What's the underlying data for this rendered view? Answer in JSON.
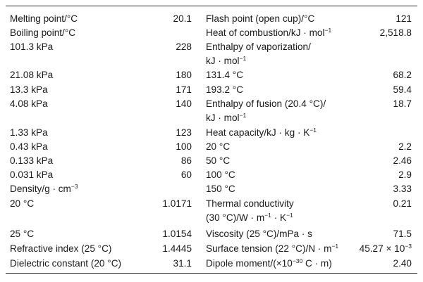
{
  "left": [
    {
      "label": "Melting point/°C",
      "value": "20.1"
    },
    {
      "label": "Boiling point/°C",
      "value": ""
    },
    {
      "label": "101.3 kPa",
      "value": "228"
    },
    {
      "label": "21.08 kPa",
      "value": "180"
    },
    {
      "label": "13.3 kPa",
      "value": "171"
    },
    {
      "label": "4.08 kPa",
      "value": "140"
    },
    {
      "label": "1.33 kPa",
      "value": "123"
    },
    {
      "label": "0.43 kPa",
      "value": "100"
    },
    {
      "label": "0.133 kPa",
      "value": "86"
    },
    {
      "label": "0.031 kPa",
      "value": "60"
    },
    {
      "label": "Density/g · cm",
      "sup": "−3",
      "value": ""
    },
    {
      "label": "20 °C",
      "value": "1.0171"
    },
    {
      "label": "25 °C",
      "value": "1.0154"
    },
    {
      "label": "Refractive index (25 °C)",
      "value": "1.4445"
    },
    {
      "label": "Dielectric constant (20 °C)",
      "value": "31.1"
    }
  ],
  "right": {
    "flash_label": "Flash point (open cup)/°C",
    "flash_value": "121",
    "combustion_label": "Heat of combustion/kJ · mol",
    "combustion_sup": "−1",
    "combustion_value": "2,518.8",
    "vap_label_1": "Enthalpy of vaporization/",
    "vap_label_2": "kJ · mol",
    "vap_sup": "−1",
    "vap_t1_label": "131.4 °C",
    "vap_t1_value": "68.2",
    "vap_t2_label": "193.2 °C",
    "vap_t2_value": "59.4",
    "fusion_label_1": "Enthalpy of fusion (20.4 °C)/",
    "fusion_label_2": "kJ · mol",
    "fusion_sup": "−1",
    "fusion_value": "18.7",
    "heatcap_label": "Heat capacity/kJ · kg · K",
    "heatcap_sup": "−1",
    "hc1_label": "20 °C",
    "hc1_value": "2.2",
    "hc2_label": "50 °C",
    "hc2_value": "2.46",
    "hc3_label": "100 °C",
    "hc3_value": "2.9",
    "hc4_label": "150 °C",
    "hc4_value": "3.33",
    "thermal_label_1": "Thermal conductivity",
    "thermal_label_2a": "(30 °C)/W · m",
    "thermal_sup_a": "−1",
    "thermal_label_2b": " · K",
    "thermal_sup_b": "−1",
    "thermal_value": "0.21",
    "viscosity_label": "Viscosity (25 °C)/mPa · s",
    "viscosity_value": "71.5",
    "surface_label": "Surface tension (22 °C)/N · m",
    "surface_sup": "−1",
    "surface_value_base": "45.27 × 10",
    "surface_value_sup": "−3",
    "dipole_label_a": "Dipole moment/(×10",
    "dipole_sup": "−30",
    "dipole_label_b": " C · m)",
    "dipole_value": "2.40"
  }
}
